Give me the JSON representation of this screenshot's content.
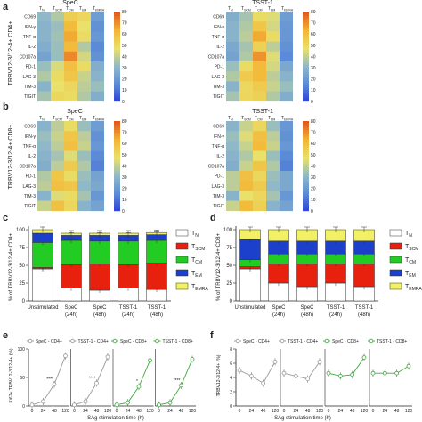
{
  "colors": {
    "heat_stops": [
      "#2b3ed8",
      "#5b8bd6",
      "#8fb9c8",
      "#e9e16a",
      "#f3b534",
      "#e05a20"
    ],
    "naive": "#ffffff",
    "scm": "#e8210f",
    "cm": "#22cc22",
    "em": "#1c3fcc",
    "emra": "#f2f065",
    "line_cd4": "#9a9a9a",
    "line_cd8": "#3daa3d"
  },
  "panels": {
    "a": {
      "label": "a",
      "spec": "SpeC",
      "tsst": "TSST-1",
      "ylabel": "TRBV12-3/12-4+ CD4+"
    },
    "b": {
      "label": "b",
      "spec": "SpeC",
      "tsst": "TSST-1",
      "ylabel": "TRBV12-3/12-4+ CD8+"
    },
    "c": {
      "label": "c",
      "ylabel": "% of TRBV12-3/12-4+ CD4+"
    },
    "d": {
      "label": "d",
      "ylabel": "% of TRBV12-3/12-4+ CD8+"
    },
    "e": {
      "label": "e",
      "ylabel": "Ki67+ TRBV12-3/12-4+ (%)",
      "xlabel": "SAg stimulation time (h)"
    },
    "f": {
      "label": "f",
      "ylabel": "TRBV12-3/12-4+ (%)",
      "xlabel": "SAg stimulation time (h)"
    }
  },
  "chart_data": [
    {
      "type": "heatmap",
      "panel": "a",
      "subpanel": "SpeC",
      "columns": [
        "TN",
        "TSCM",
        "TCM",
        "TEM",
        "TEMRA"
      ],
      "rows": [
        "CD69",
        "IFN-γ",
        "TNF-α",
        "IL-2",
        "CD107a",
        "PD-1",
        "LAG-3",
        "TIM-3",
        "TIGIT"
      ],
      "colorbar_ticks": [
        0,
        10,
        20,
        30,
        40,
        50,
        60,
        70,
        80
      ],
      "values": [
        [
          32,
          38,
          55,
          52,
          22
        ],
        [
          30,
          34,
          62,
          48,
          18
        ],
        [
          30,
          35,
          66,
          50,
          20
        ],
        [
          28,
          34,
          62,
          38,
          16
        ],
        [
          24,
          34,
          72,
          44,
          18
        ],
        [
          34,
          45,
          60,
          50,
          28
        ],
        [
          38,
          50,
          58,
          42,
          30
        ],
        [
          30,
          48,
          52,
          40,
          34
        ],
        [
          36,
          52,
          50,
          38,
          28
        ]
      ]
    },
    {
      "type": "heatmap",
      "panel": "a",
      "subpanel": "TSST-1",
      "columns": [
        "TN",
        "TSCM",
        "TCM",
        "TEM",
        "TEMRA"
      ],
      "rows": [
        "CD69",
        "IFN-γ",
        "TNF-α",
        "IL-2",
        "CD107a",
        "PD-1",
        "LAG-3",
        "TIM-3",
        "TIGIT"
      ],
      "colorbar_ticks": [
        0,
        10,
        20,
        30,
        40,
        50,
        60,
        70,
        80
      ],
      "values": [
        [
          28,
          36,
          50,
          46,
          22
        ],
        [
          30,
          38,
          58,
          44,
          20
        ],
        [
          30,
          40,
          66,
          50,
          20
        ],
        [
          26,
          36,
          54,
          40,
          18
        ],
        [
          24,
          38,
          70,
          46,
          16
        ],
        [
          34,
          50,
          62,
          44,
          26
        ],
        [
          38,
          56,
          62,
          40,
          30
        ],
        [
          30,
          52,
          56,
          42,
          34
        ],
        [
          36,
          52,
          54,
          38,
          28
        ]
      ]
    },
    {
      "type": "heatmap",
      "panel": "b",
      "subpanel": "SpeC",
      "columns": [
        "TN",
        "TSCM",
        "TCM",
        "TEM",
        "TEMRA"
      ],
      "rows": [
        "CD69",
        "IFN-γ",
        "TNF-α",
        "IL-2",
        "CD107a",
        "PD-1",
        "LAG-3",
        "TIM-3",
        "TIGIT"
      ],
      "colorbar_ticks": [
        0,
        10,
        20,
        30,
        40,
        50,
        60,
        70,
        80
      ],
      "values": [
        [
          30,
          40,
          50,
          34,
          22
        ],
        [
          34,
          42,
          58,
          40,
          18
        ],
        [
          32,
          40,
          60,
          42,
          20
        ],
        [
          30,
          36,
          46,
          34,
          16
        ],
        [
          28,
          40,
          56,
          38,
          14
        ],
        [
          38,
          58,
          50,
          34,
          24
        ],
        [
          40,
          60,
          58,
          32,
          26
        ],
        [
          30,
          46,
          50,
          36,
          20
        ],
        [
          42,
          60,
          52,
          30,
          24
        ]
      ]
    },
    {
      "type": "heatmap",
      "panel": "b",
      "subpanel": "TSST-1",
      "columns": [
        "TN",
        "TSCM",
        "TCM",
        "TEM",
        "TEMRA"
      ],
      "rows": [
        "CD69",
        "IFN-γ",
        "TNF-α",
        "IL-2",
        "CD107a",
        "PD-1",
        "LAG-3",
        "TIM-3",
        "TIGIT"
      ],
      "colorbar_ticks": [
        0,
        10,
        20,
        30,
        40,
        50,
        60,
        70,
        80
      ],
      "values": [
        [
          30,
          42,
          52,
          34,
          20
        ],
        [
          34,
          46,
          60,
          40,
          18
        ],
        [
          32,
          42,
          62,
          42,
          20
        ],
        [
          30,
          38,
          48,
          34,
          16
        ],
        [
          28,
          42,
          58,
          38,
          14
        ],
        [
          40,
          60,
          52,
          34,
          26
        ],
        [
          40,
          62,
          56,
          32,
          26
        ],
        [
          30,
          48,
          52,
          36,
          20
        ],
        [
          42,
          62,
          54,
          30,
          24
        ]
      ]
    },
    {
      "type": "bar",
      "stacked": true,
      "panel": "c",
      "categories": [
        "Unstimulated",
        "SpeC\n(24h)",
        "SpeC\n(48h)",
        "TSST-1\n(24h)",
        "TSST-1\n(48h)"
      ],
      "ylim": [
        0,
        100
      ],
      "yticks": [
        0,
        25,
        50,
        75,
        100
      ],
      "ylabel": "% of TRBV12-3/12-4+ CD4+",
      "series": [
        {
          "name": "TN",
          "values": [
            45,
            18,
            15,
            18,
            16
          ]
        },
        {
          "name": "TSCM",
          "values": [
            2,
            33,
            37,
            33,
            37
          ]
        },
        {
          "name": "TCM",
          "values": [
            35,
            34,
            32,
            33,
            32
          ]
        },
        {
          "name": "TEM",
          "values": [
            13,
            7,
            8,
            8,
            8
          ]
        },
        {
          "name": "TEMRA",
          "values": [
            5,
            3,
            3,
            3,
            3
          ]
        }
      ]
    },
    {
      "type": "bar",
      "stacked": true,
      "panel": "d",
      "categories": [
        "Unstimulated",
        "SpeC\n(24h)",
        "SpeC\n(48h)",
        "TSST-1\n(24h)",
        "TSST-1\n(48h)"
      ],
      "ylim": [
        0,
        100
      ],
      "yticks": [
        0,
        25,
        50,
        75,
        100
      ],
      "ylabel": "% of TRBV12-3/12-4+ CD8+",
      "series": [
        {
          "name": "TN",
          "values": [
            45,
            25,
            20,
            25,
            20
          ]
        },
        {
          "name": "TSCM",
          "values": [
            3,
            27,
            32,
            27,
            32
          ]
        },
        {
          "name": "TCM",
          "values": [
            10,
            14,
            14,
            14,
            14
          ]
        },
        {
          "name": "TEM",
          "values": [
            28,
            18,
            18,
            18,
            18
          ]
        },
        {
          "name": "TEMRA",
          "values": [
            14,
            16,
            16,
            16,
            16
          ]
        }
      ]
    },
    {
      "type": "line",
      "panel": "e",
      "legend": [
        "SpeC - CD4+",
        "TSST-1 - CD4+",
        "SpeC - CD8+",
        "TSST-1 - CD8+"
      ],
      "groups": [
        {
          "label": "SpeC - CD4+",
          "x": [
            "0",
            "24",
            "48",
            "120"
          ],
          "y": [
            2,
            8,
            38,
            88
          ],
          "stars": "****"
        },
        {
          "label": "TSST-1 - CD4+",
          "x": [
            "0",
            "24",
            "48",
            "120"
          ],
          "y": [
            2,
            8,
            40,
            86
          ],
          "stars": "****"
        },
        {
          "label": "SpeC - CD8+",
          "x": [
            "0",
            "24",
            "48",
            "120"
          ],
          "y": [
            2,
            6,
            34,
            80
          ],
          "stars": "*"
        },
        {
          "label": "TSST-1 - CD8+",
          "x": [
            "0",
            "24",
            "48",
            "120"
          ],
          "y": [
            2,
            6,
            36,
            82
          ],
          "stars": "****"
        }
      ],
      "ylim": [
        0,
        100
      ],
      "yticks": [
        0,
        50,
        100
      ],
      "xlabel": "SAg stimulation time (h)"
    },
    {
      "type": "line",
      "panel": "f",
      "legend": [
        "SpeC - CD4+",
        "TSST-1 - CD4+",
        "SpeC - CD8+",
        "TSST-1 - CD8+"
      ],
      "groups": [
        {
          "label": "SpeC - CD4+",
          "x": [
            "0",
            "24",
            "48",
            "120"
          ],
          "y": [
            5,
            4.2,
            3.2,
            6.2
          ]
        },
        {
          "label": "TSST-1 - CD4+",
          "x": [
            "0",
            "24",
            "48",
            "120"
          ],
          "y": [
            4.6,
            4.2,
            3.8,
            6.2
          ]
        },
        {
          "label": "SpeC - CD8+",
          "x": [
            "0",
            "24",
            "48",
            "120"
          ],
          "y": [
            4.6,
            4.2,
            4.4,
            6.8
          ]
        },
        {
          "label": "TSST-1 - CD8+",
          "x": [
            "0",
            "24",
            "48",
            "120"
          ],
          "y": [
            4.6,
            4.6,
            4.6,
            5.6
          ]
        }
      ],
      "ylim": [
        0,
        8
      ],
      "yticks": [
        0,
        2,
        4,
        6,
        8
      ],
      "xlabel": "SAg stimulation time (h)"
    }
  ]
}
